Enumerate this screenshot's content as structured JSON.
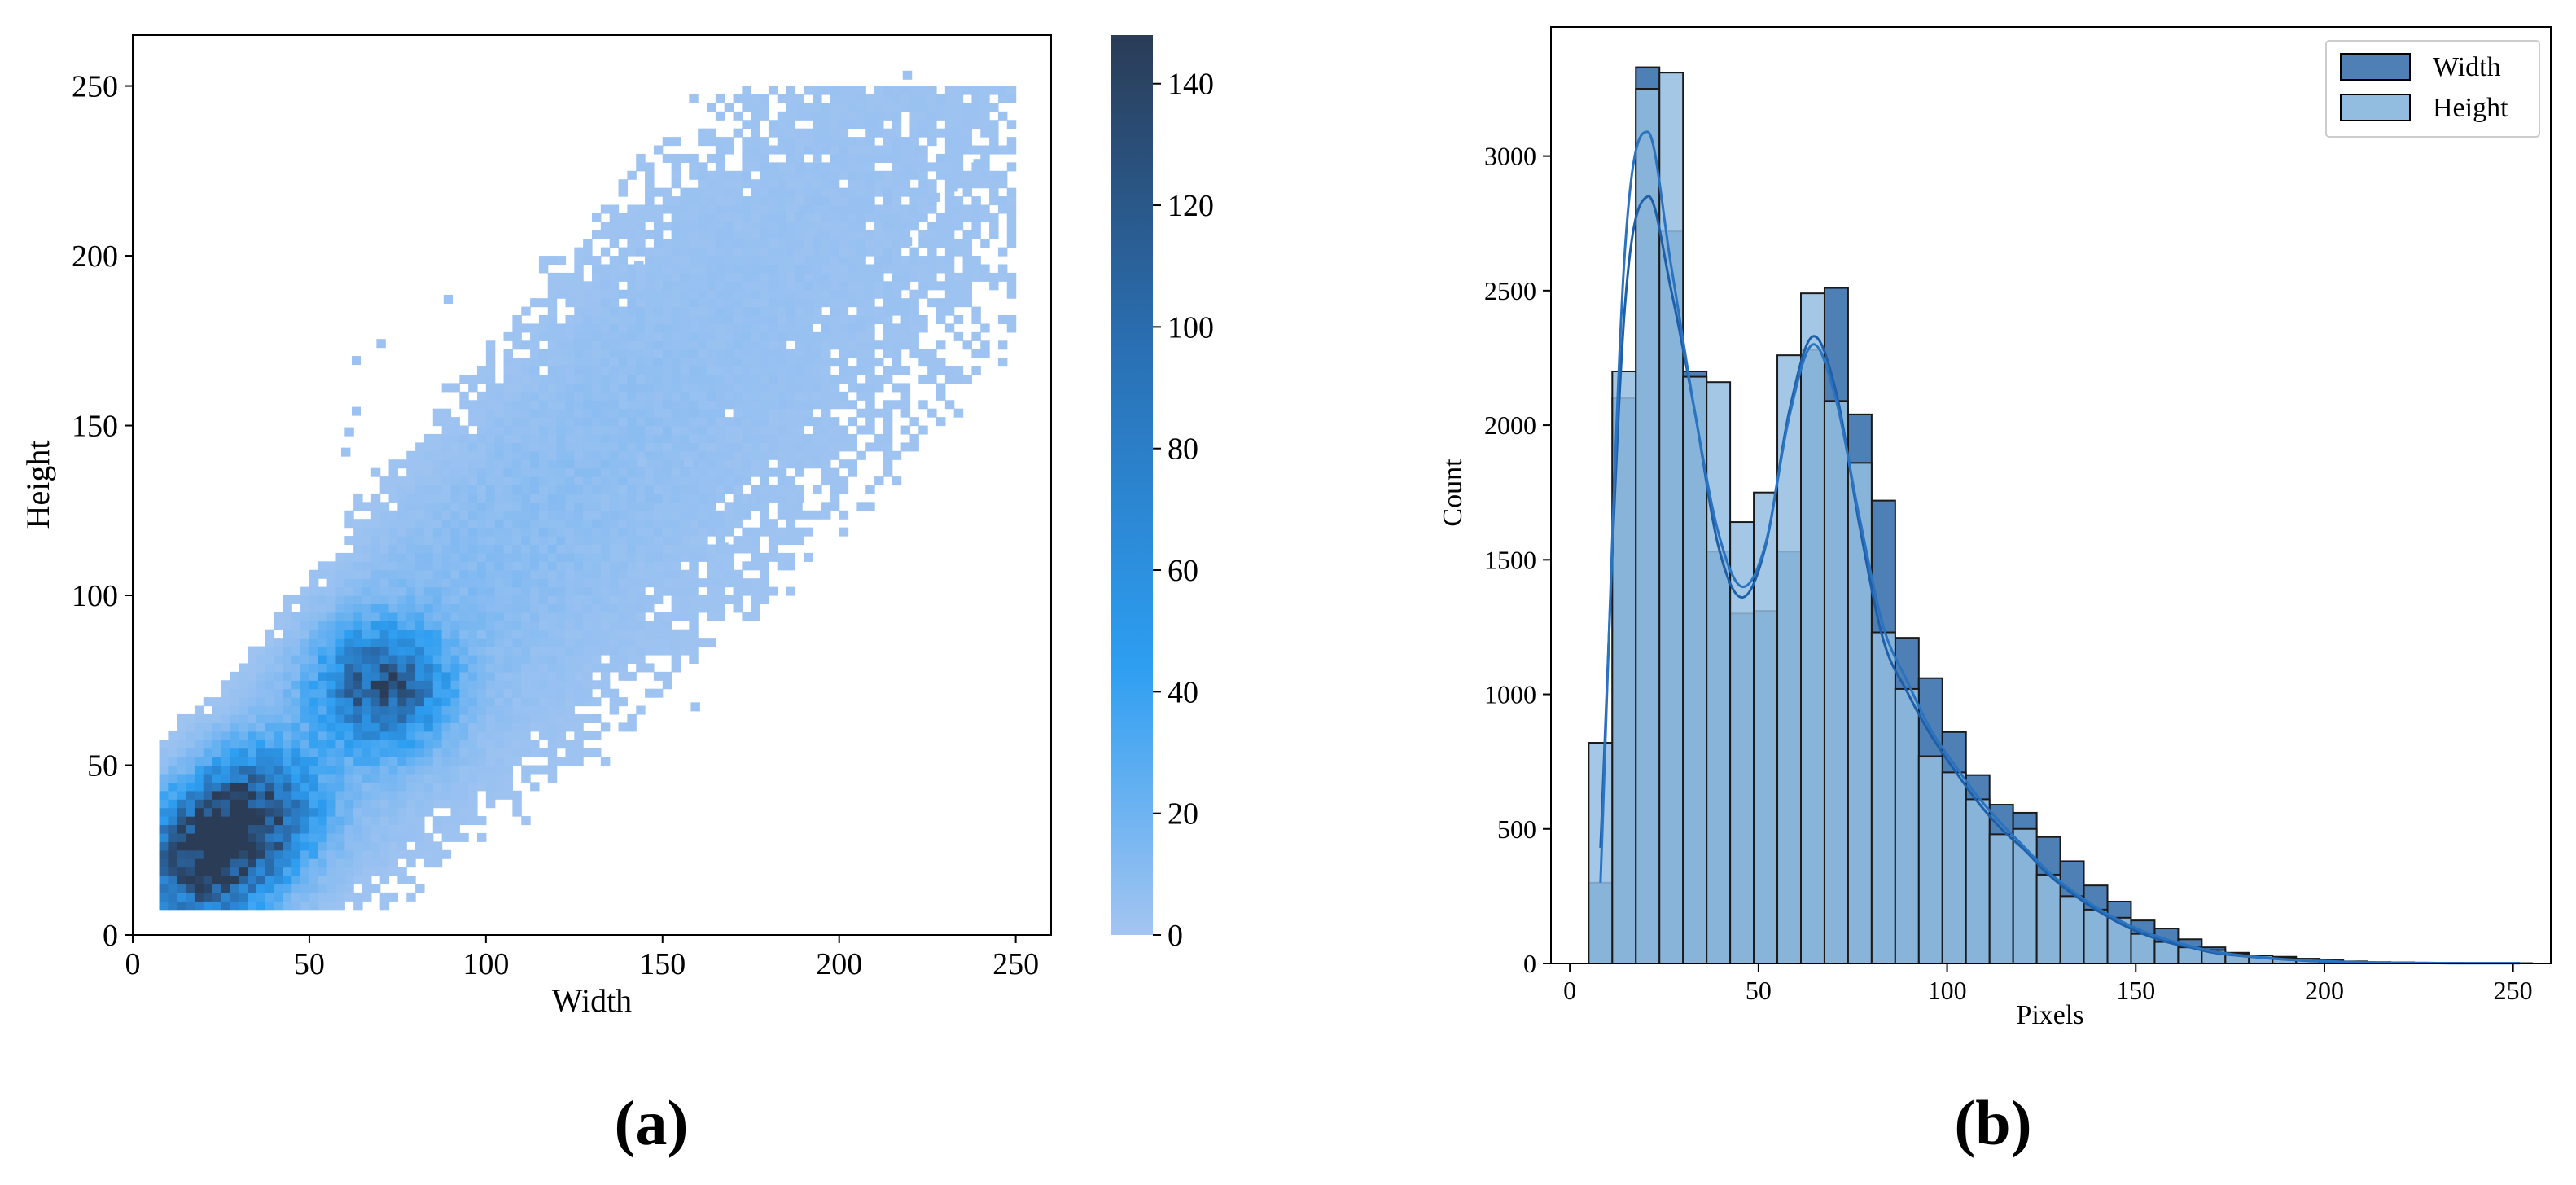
{
  "chart_data": [
    {
      "type": "heatmap",
      "panel_label": "(a)",
      "xlabel": "Width",
      "ylabel": "Height",
      "xlim": [
        0,
        260
      ],
      "ylim": [
        0,
        265
      ],
      "xticks": [
        0,
        50,
        100,
        150,
        200,
        250
      ],
      "yticks": [
        0,
        50,
        100,
        150,
        200,
        250
      ],
      "colorbar": {
        "min": 0,
        "max": 148,
        "ticks": [
          0,
          20,
          40,
          60,
          80,
          100,
          120,
          140
        ]
      },
      "bin_size": 2.5,
      "density_clusters": [
        {
          "center_width": 20,
          "center_height": 22,
          "peak_count": 140
        },
        {
          "center_width": 33,
          "center_height": 35,
          "peak_count": 110
        },
        {
          "center_width": 70,
          "center_height": 72,
          "peak_count": 110
        }
      ],
      "trend": {
        "slope": 1.0,
        "intercept": 2
      },
      "outlier_cells": [
        [
          205,
          243
        ],
        [
          218,
          252
        ],
        [
          222,
          247
        ],
        [
          219,
          230
        ],
        [
          221,
          225
        ],
        [
          238,
          226
        ],
        [
          243,
          222
        ],
        [
          231,
          219
        ],
        [
          226,
          216
        ],
        [
          218,
          203
        ],
        [
          191,
          206
        ],
        [
          186,
          213
        ],
        [
          155,
          197
        ],
        [
          142,
          196
        ],
        [
          88,
          186
        ],
        [
          69,
          173
        ],
        [
          62,
          168
        ],
        [
          62,
          153
        ],
        [
          60,
          147
        ],
        [
          59,
          141
        ],
        [
          143,
          138
        ],
        [
          174,
          127
        ],
        [
          187,
          125
        ],
        [
          158,
          66
        ],
        [
          152,
          84
        ],
        [
          148,
          88
        ],
        [
          166,
          113
        ],
        [
          156,
          138
        ],
        [
          187,
          199
        ],
        [
          204,
          218
        ],
        [
          224,
          204
        ],
        [
          215,
          188
        ],
        [
          210,
          180
        ]
      ]
    },
    {
      "type": "bar",
      "panel_label": "(b)",
      "xlabel": "Pixels",
      "ylabel": "Count",
      "xlim": [
        -5,
        260
      ],
      "ylim": [
        0,
        3480
      ],
      "xticks": [
        0,
        50,
        100,
        150,
        200,
        250
      ],
      "yticks": [
        0,
        500,
        1000,
        1500,
        2000,
        2500,
        3000
      ],
      "bin_start": 5,
      "bin_width": 6.25,
      "legend_position": "top-right",
      "series": [
        {
          "name": "Width",
          "color": "#4e7fb5",
          "values": [
            300,
            2100,
            3330,
            2720,
            2200,
            1530,
            1300,
            1310,
            1530,
            2280,
            2510,
            2040,
            1720,
            1210,
            1060,
            860,
            700,
            590,
            560,
            470,
            380,
            290,
            230,
            160,
            130,
            90,
            60,
            40,
            30,
            25,
            18,
            12,
            8,
            5,
            4,
            3,
            2,
            1,
            1,
            1
          ],
          "kde": [
            430,
            2400,
            2850,
            2500,
            2050,
            1550,
            1360,
            1550,
            2050,
            2330,
            2120,
            1620,
            1200,
            1010,
            850,
            720,
            600,
            500,
            420,
            330,
            260,
            200,
            150,
            110,
            80,
            60,
            40,
            30,
            22,
            15,
            10,
            7,
            5,
            3,
            2,
            2,
            1,
            1,
            1,
            1
          ]
        },
        {
          "name": "Height",
          "color": "#93bde0",
          "values": [
            820,
            2200,
            3250,
            3310,
            2180,
            2160,
            1640,
            1750,
            2260,
            2490,
            2090,
            1860,
            1230,
            1020,
            770,
            710,
            610,
            480,
            500,
            330,
            250,
            200,
            170,
            110,
            80,
            60,
            50,
            35,
            30,
            20,
            15,
            10,
            6,
            5,
            4,
            3,
            2,
            1,
            1,
            1
          ],
          "kde": [
            300,
            2600,
            3090,
            2590,
            2050,
            1600,
            1400,
            1560,
            2030,
            2300,
            2090,
            1650,
            1250,
            1050,
            870,
            740,
            620,
            520,
            430,
            340,
            270,
            210,
            160,
            120,
            90,
            65,
            45,
            32,
            23,
            16,
            11,
            8,
            5,
            3,
            2,
            2,
            1,
            1,
            1,
            1
          ]
        }
      ]
    }
  ]
}
